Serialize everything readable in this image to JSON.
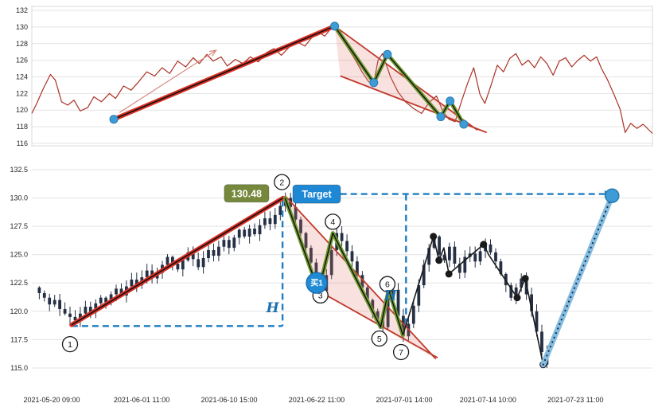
{
  "colors": {
    "grid": "#e3e3e3",
    "frame": "#d8d8d8",
    "tick_text": "#262626",
    "price_line": "#a93226",
    "trend_red": "#d93025",
    "trend_core": "#111111",
    "zigzag_green": "#6f9a2f",
    "flag_fill": "rgba(225,120,110,0.22)",
    "flag_edge": "#c0392b",
    "dot_blue": "#3d9bd6",
    "dot_blue_edge": "#2a7db3",
    "candle": "#263045",
    "dashed_blue": "#1f7ec1",
    "projection": "#85bde0",
    "projection_core": "#1c2e4a",
    "post_line": "#1a1a1a",
    "target_box": "#1e88d4",
    "price_box": "#75883b",
    "buy_circle": "#1e8bd4",
    "arrow": "#d98880"
  },
  "chart_data": [
    {
      "name": "overview-panel",
      "type": "line",
      "title": "",
      "ylim": [
        115.71,
        132.48
      ],
      "grid": true,
      "yticks": [
        {
          "v": 116,
          "label": "116"
        },
        {
          "v": 118,
          "label": "118"
        },
        {
          "v": 120,
          "label": "120"
        },
        {
          "v": 122,
          "label": "122"
        },
        {
          "v": 124,
          "label": "124"
        },
        {
          "v": 126,
          "label": "126"
        },
        {
          "v": 128,
          "label": "128"
        },
        {
          "v": 130,
          "label": "130"
        },
        {
          "v": 132,
          "label": "132"
        }
      ],
      "series": {
        "name": "close-price",
        "points": [
          [
            0.0,
            119.6
          ],
          [
            0.008,
            120.8
          ],
          [
            0.018,
            122.5
          ],
          [
            0.03,
            124.3
          ],
          [
            0.038,
            123.6
          ],
          [
            0.048,
            121.0
          ],
          [
            0.058,
            120.6
          ],
          [
            0.068,
            121.2
          ],
          [
            0.078,
            119.9
          ],
          [
            0.09,
            120.3
          ],
          [
            0.1,
            121.6
          ],
          [
            0.112,
            121.0
          ],
          [
            0.125,
            122.0
          ],
          [
            0.135,
            121.4
          ],
          [
            0.148,
            122.9
          ],
          [
            0.16,
            122.4
          ],
          [
            0.172,
            123.4
          ],
          [
            0.185,
            124.6
          ],
          [
            0.198,
            124.1
          ],
          [
            0.21,
            125.1
          ],
          [
            0.222,
            124.4
          ],
          [
            0.235,
            125.9
          ],
          [
            0.248,
            125.2
          ],
          [
            0.26,
            126.3
          ],
          [
            0.27,
            125.6
          ],
          [
            0.282,
            126.7
          ],
          [
            0.292,
            125.9
          ],
          [
            0.305,
            126.4
          ],
          [
            0.315,
            125.3
          ],
          [
            0.328,
            126.1
          ],
          [
            0.34,
            125.6
          ],
          [
            0.352,
            126.4
          ],
          [
            0.365,
            125.8
          ],
          [
            0.378,
            126.9
          ],
          [
            0.39,
            127.4
          ],
          [
            0.402,
            126.6
          ],
          [
            0.415,
            127.6
          ],
          [
            0.428,
            128.2
          ],
          [
            0.44,
            127.7
          ],
          [
            0.452,
            128.8
          ],
          [
            0.462,
            129.4
          ],
          [
            0.472,
            128.9
          ],
          [
            0.485,
            130.1
          ],
          [
            0.495,
            129.0
          ],
          [
            0.508,
            127.6
          ],
          [
            0.52,
            126.2
          ],
          [
            0.532,
            124.6
          ],
          [
            0.543,
            123.4
          ],
          [
            0.551,
            123.3
          ],
          [
            0.558,
            126.0
          ],
          [
            0.565,
            126.8
          ],
          [
            0.578,
            124.0
          ],
          [
            0.59,
            122.2
          ],
          [
            0.602,
            121.0
          ],
          [
            0.615,
            120.2
          ],
          [
            0.628,
            119.6
          ],
          [
            0.64,
            120.9
          ],
          [
            0.652,
            121.7
          ],
          [
            0.662,
            119.9
          ],
          [
            0.672,
            118.9
          ],
          [
            0.682,
            118.6
          ],
          [
            0.692,
            121.0
          ],
          [
            0.702,
            123.2
          ],
          [
            0.712,
            125.1
          ],
          [
            0.722,
            121.9
          ],
          [
            0.73,
            120.8
          ],
          [
            0.74,
            123.0
          ],
          [
            0.75,
            125.4
          ],
          [
            0.76,
            124.6
          ],
          [
            0.77,
            126.2
          ],
          [
            0.78,
            126.8
          ],
          [
            0.79,
            125.4
          ],
          [
            0.8,
            126.0
          ],
          [
            0.81,
            125.1
          ],
          [
            0.82,
            126.4
          ],
          [
            0.83,
            125.6
          ],
          [
            0.84,
            124.2
          ],
          [
            0.85,
            125.9
          ],
          [
            0.86,
            126.3
          ],
          [
            0.87,
            125.2
          ],
          [
            0.88,
            126.0
          ],
          [
            0.89,
            126.6
          ],
          [
            0.9,
            125.9
          ],
          [
            0.91,
            126.4
          ],
          [
            0.918,
            125.0
          ],
          [
            0.928,
            123.6
          ],
          [
            0.938,
            121.9
          ],
          [
            0.948,
            120.1
          ],
          [
            0.956,
            117.3
          ],
          [
            0.965,
            118.4
          ],
          [
            0.975,
            117.8
          ],
          [
            0.985,
            118.3
          ],
          [
            1.0,
            117.2
          ]
        ]
      },
      "pole": {
        "from": [
          0.132,
          118.9
        ],
        "to": [
          0.488,
          130.1
        ]
      },
      "arrow": {
        "from": [
          0.141,
          119.7
        ],
        "to": [
          0.297,
          127.2
        ]
      },
      "flag": {
        "upper": [
          [
            0.488,
            130.1
          ],
          [
            0.718,
            117.6
          ]
        ],
        "lower": [
          [
            0.497,
            124.1
          ],
          [
            0.733,
            117.3
          ]
        ],
        "fill": [
          [
            0.488,
            130.1
          ],
          [
            0.718,
            117.6
          ],
          [
            0.733,
            117.3
          ],
          [
            0.497,
            124.1
          ]
        ],
        "zigzag": [
          [
            0.488,
            130.1
          ],
          [
            0.551,
            123.3
          ],
          [
            0.573,
            126.7
          ],
          [
            0.659,
            119.2
          ],
          [
            0.674,
            121.1
          ],
          [
            0.696,
            118.3
          ]
        ]
      },
      "dots": [
        [
          0.132,
          118.9
        ],
        [
          0.488,
          130.1
        ],
        [
          0.551,
          123.3
        ],
        [
          0.573,
          126.7
        ],
        [
          0.659,
          119.2
        ],
        [
          0.674,
          121.1
        ],
        [
          0.696,
          118.3
        ]
      ]
    },
    {
      "name": "detail-panel",
      "type": "candlestick",
      "title": "",
      "ylim": [
        113.38,
        133.06
      ],
      "grid": true,
      "yticks": [
        {
          "v": 115.0,
          "label": "115.0"
        },
        {
          "v": 117.5,
          "label": "117.5"
        },
        {
          "v": 120.0,
          "label": "120.0"
        },
        {
          "v": 122.5,
          "label": "122.5"
        },
        {
          "v": 125.0,
          "label": "125.0"
        },
        {
          "v": 127.5,
          "label": "127.5"
        },
        {
          "v": 130.0,
          "label": "130.0"
        },
        {
          "v": 132.5,
          "label": "132.5"
        }
      ],
      "xticks": [
        {
          "t": 0.032,
          "label": "2021-05-20 09:00"
        },
        {
          "t": 0.177,
          "label": "2021-06-01 11:00"
        },
        {
          "t": 0.318,
          "label": "2021-06-10 15:00"
        },
        {
          "t": 0.459,
          "label": "2021-06-22 11:00"
        },
        {
          "t": 0.6,
          "label": "2021-07-01 14:00"
        },
        {
          "t": 0.735,
          "label": "2021-07-14 10:00"
        },
        {
          "t": 0.876,
          "label": "2021-07-23 11:00"
        }
      ],
      "candles": {
        "t_range": [
          0.012,
          0.83
        ],
        "peak_index": 48,
        "peak_high": 130.48,
        "closes": [
          121.6,
          121.2,
          120.6,
          121.0,
          120.2,
          119.8,
          119.5,
          119.2,
          119.8,
          120.4,
          119.9,
          120.7,
          121.2,
          120.8,
          121.5,
          122.0,
          121.4,
          122.2,
          122.8,
          122.3,
          123.0,
          123.6,
          122.9,
          123.4,
          124.1,
          124.8,
          124.2,
          123.7,
          124.5,
          125.2,
          124.6,
          123.9,
          124.7,
          125.4,
          124.9,
          125.7,
          126.3,
          125.6,
          126.5,
          127.2,
          126.6,
          127.3,
          126.8,
          127.6,
          128.2,
          127.7,
          128.5,
          129.3,
          130.0,
          129.2,
          128.1,
          126.9,
          125.6,
          124.3,
          123.0,
          121.8,
          123.2,
          125.4,
          126.9,
          126.2,
          125.3,
          124.4,
          123.2,
          122.1,
          121.0,
          120.0,
          119.2,
          118.6,
          121.2,
          121.9,
          119.6,
          117.8,
          118.9,
          120.5,
          122.3,
          124.1,
          125.6,
          126.6,
          125.0,
          124.5,
          125.7,
          124.2,
          123.4,
          124.8,
          125.1,
          124.4,
          125.3,
          125.9,
          125.2,
          124.4,
          123.3,
          122.3,
          121.2,
          122.1,
          122.9,
          121.5,
          120.0,
          118.2,
          116.4,
          115.3
        ]
      },
      "pole": {
        "from": [
          0.064,
          118.8
        ],
        "to": [
          0.405,
          130.0
        ]
      },
      "flag": {
        "upper": [
          [
            0.408,
            130.2
          ],
          [
            0.651,
            115.8
          ]
        ],
        "lower": [
          [
            0.462,
            121.8
          ],
          [
            0.654,
            115.9
          ]
        ],
        "fill": [
          [
            0.408,
            130.2
          ],
          [
            0.651,
            115.8
          ],
          [
            0.462,
            121.8
          ]
        ],
        "zigzag": [
          [
            0.408,
            130.0
          ],
          [
            0.462,
            121.8
          ],
          [
            0.485,
            126.9
          ],
          [
            0.562,
            118.6
          ],
          [
            0.575,
            121.9
          ],
          [
            0.598,
            117.9
          ]
        ]
      },
      "post_line": {
        "points": [
          [
            0.598,
            117.9
          ],
          [
            0.647,
            126.6
          ],
          [
            0.656,
            124.5
          ],
          [
            0.664,
            125.6
          ],
          [
            0.672,
            123.3
          ],
          [
            0.728,
            125.9
          ],
          [
            0.736,
            125.0
          ],
          [
            0.782,
            121.2
          ],
          [
            0.795,
            122.9
          ],
          [
            0.824,
            115.3
          ]
        ],
        "dots": [
          [
            0.647,
            126.6
          ],
          [
            0.656,
            124.5
          ],
          [
            0.672,
            123.3
          ],
          [
            0.728,
            125.9
          ],
          [
            0.782,
            121.2
          ],
          [
            0.795,
            122.9
          ],
          [
            0.824,
            115.3
          ]
        ]
      },
      "projection": {
        "from": [
          0.824,
          115.3
        ],
        "to": [
          0.935,
          130.2
        ]
      },
      "measure": {
        "lines": [
          [
            [
              0.404,
              129.8
            ],
            [
              0.404,
              118.7
            ]
          ],
          [
            [
              0.064,
              118.7
            ],
            [
              0.404,
              118.7
            ]
          ],
          [
            [
              0.603,
              130.35
            ],
            [
              0.603,
              118.6
            ]
          ]
        ]
      },
      "target_arrow": {
        "p": 130.35,
        "t1": 0.497,
        "t2": 0.923
      },
      "annotations": {
        "price_label": {
          "text": "130.48",
          "t": 0.346,
          "p": 130.4
        },
        "target_label": {
          "text": "Target",
          "t": 0.459,
          "p": 130.35
        },
        "buy_label": {
          "text": "买1",
          "t": 0.459,
          "p": 122.5
        },
        "h_labels": [
          {
            "text": "H",
            "t": 0.388,
            "p": 119.9
          },
          {
            "text": "H",
            "t": 0.578,
            "p": 121.0
          }
        ],
        "circles": [
          {
            "label": "1",
            "t": 0.0615,
            "p": 117.1
          },
          {
            "label": "2",
            "t": 0.403,
            "p": 131.4
          },
          {
            "label": "3",
            "t": 0.465,
            "p": 121.4
          },
          {
            "label": "4",
            "t": 0.485,
            "p": 127.9
          },
          {
            "label": "5",
            "t": 0.56,
            "p": 117.6
          },
          {
            "label": "6",
            "t": 0.573,
            "p": 122.4
          },
          {
            "label": "7",
            "t": 0.595,
            "p": 116.4
          }
        ]
      }
    }
  ]
}
